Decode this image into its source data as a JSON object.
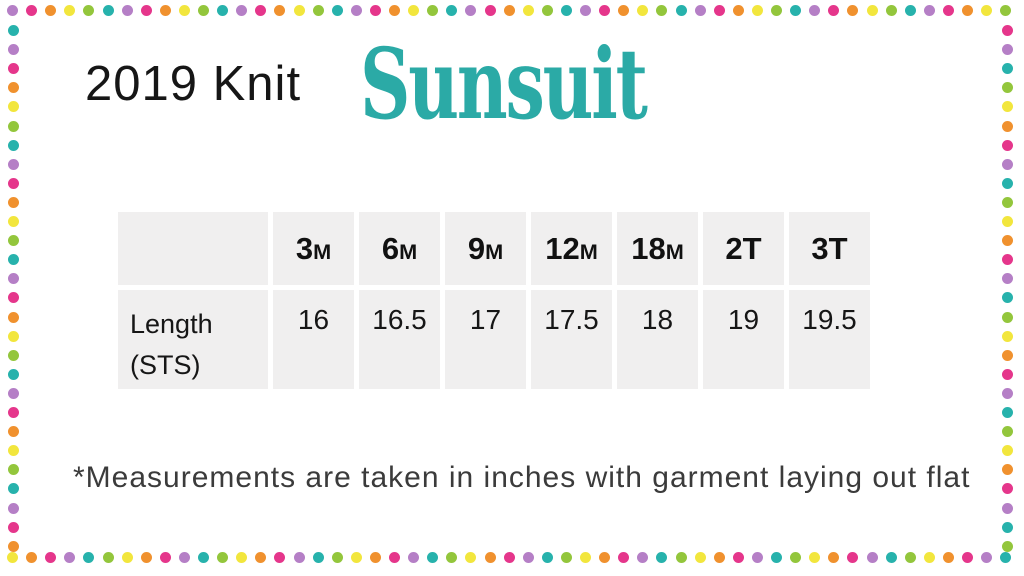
{
  "page": {
    "title_plain": "2019 Knit",
    "brand": "Sunsuit",
    "brand_color": "#2baaa6",
    "footnote": "*Measurements are taken in inches with garment laying out flat"
  },
  "size_table": {
    "corner_label": "",
    "cell_background": "#f0efef",
    "headers": [
      {
        "size": "3",
        "unit": "M"
      },
      {
        "size": "6",
        "unit": "M"
      },
      {
        "size": "9",
        "unit": "M"
      },
      {
        "size": "12",
        "unit": "M"
      },
      {
        "size": "18",
        "unit": "M"
      },
      {
        "size": "2T",
        "unit": ""
      },
      {
        "size": "3T",
        "unit": ""
      }
    ],
    "row": {
      "label_line1": "Length",
      "label_line2": "(STS)",
      "values": [
        "16",
        "16.5",
        "17",
        "17.5",
        "18",
        "19",
        "19.5"
      ]
    }
  },
  "border": {
    "palette": {
      "purple": "#b57fc6",
      "pink": "#e5368b",
      "orange": "#f0912e",
      "yellow": "#f2e63d",
      "green": "#93c63c",
      "teal": "#27b2ac"
    },
    "top_sequence": [
      "purple",
      "pink",
      "orange",
      "yellow",
      "green",
      "teal"
    ],
    "left_sequence": [
      "teal",
      "purple",
      "pink",
      "orange",
      "yellow",
      "green"
    ],
    "right_sequence": [
      "pink",
      "purple",
      "teal",
      "green",
      "yellow",
      "orange"
    ],
    "bottom_sequence": [
      "yellow",
      "orange",
      "pink",
      "purple",
      "teal",
      "green"
    ]
  },
  "chart_data": {
    "type": "table",
    "title": "2019 Knit Sunsuit",
    "columns": [
      "",
      "3M",
      "6M",
      "9M",
      "12M",
      "18M",
      "2T",
      "3T"
    ],
    "rows": [
      [
        "Length (STS)",
        16,
        16.5,
        17,
        17.5,
        18,
        19,
        19.5
      ]
    ],
    "note": "*Measurements are taken in inches with garment laying out flat"
  }
}
